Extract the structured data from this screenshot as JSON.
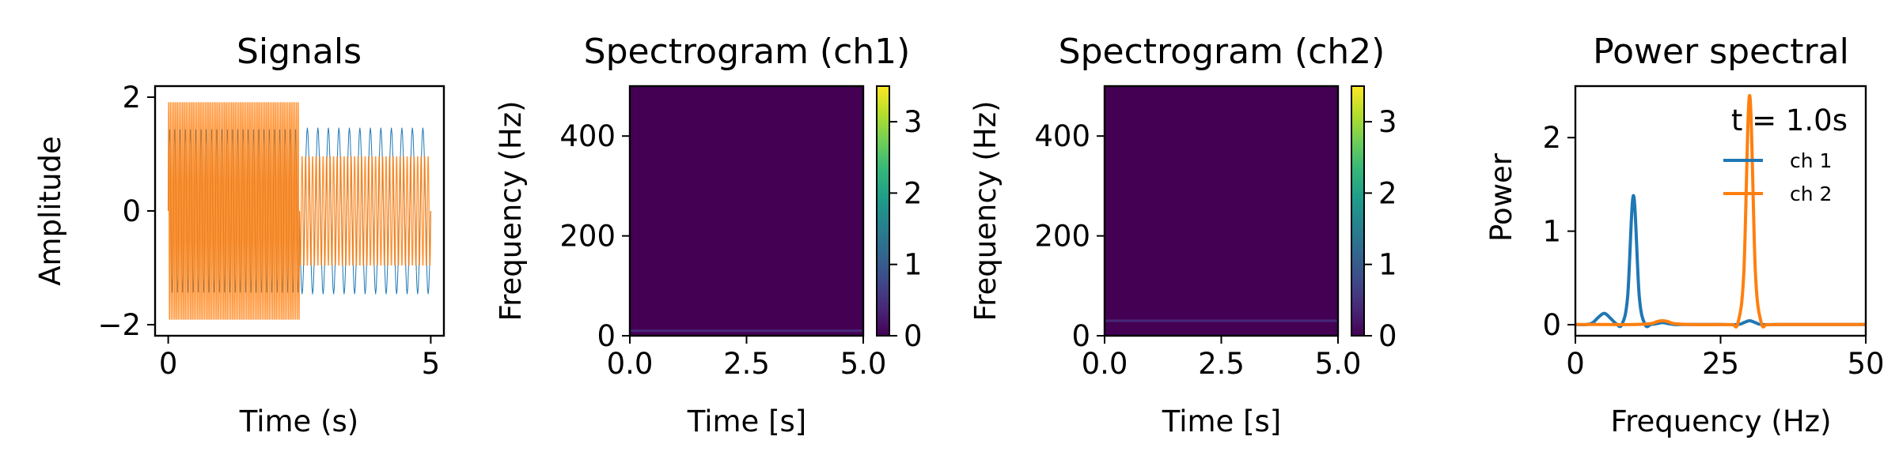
{
  "figure": {
    "colors": {
      "ch1": "#1f77b4",
      "ch2": "#ff7f0e",
      "viridis": [
        "#440154",
        "#482878",
        "#3e4a89",
        "#31688e",
        "#26828e",
        "#1f9e89",
        "#35b779",
        "#6ece58",
        "#b5de2b",
        "#fde725"
      ]
    }
  },
  "chart_data": [
    {
      "type": "line",
      "title": "Signals",
      "xlabel": "Time (s)",
      "ylabel": "Amplitude",
      "xlim": [
        -0.25,
        5.25
      ],
      "ylim": [
        -2.25,
        2.25
      ],
      "xticks": [
        0,
        5
      ],
      "yticks": [
        -2,
        0,
        2
      ],
      "xticklabels": [
        "0",
        "5"
      ],
      "yticklabels": [
        "−2",
        "0",
        "2"
      ],
      "series": [
        {
          "color": "#1f77b4",
          "segments": [
            {
              "t0": 0,
              "t1": 2.5,
              "amplitude": 1.5,
              "freq_hz": 10
            },
            {
              "t0": 2.5,
              "t1": 5,
              "amplitude": 1.5,
              "freq_hz": 5
            }
          ]
        },
        {
          "color": "#ff7f0e",
          "segments": [
            {
              "t0": 0,
              "t1": 2.5,
              "amplitude": 2,
              "freq_hz": 30
            },
            {
              "t0": 2.5,
              "t1": 5,
              "amplitude": 1,
              "freq_hz": 15
            }
          ]
        }
      ]
    },
    {
      "type": "heatmap",
      "title": "Spectrogram (ch1)",
      "xlabel": "Time [s]",
      "ylabel": "Frequency (Hz)",
      "xlim": [
        0,
        5
      ],
      "ylim": [
        0,
        500
      ],
      "xticks": [
        0,
        2.5,
        5
      ],
      "yticks": [
        0,
        200,
        400
      ],
      "xticklabels": [
        "0.0",
        "2.5",
        "5.0"
      ],
      "yticklabels": [
        "0",
        "200",
        "400"
      ],
      "colorbar": {
        "range": [
          0,
          3.5
        ],
        "ticks": [
          0,
          1,
          2,
          3
        ],
        "ticklabels": [
          "0",
          "1",
          "2",
          "3"
        ]
      },
      "background_value": 0,
      "bands": [
        {
          "freq_hz": 10,
          "t0": 0,
          "t1": 5,
          "value": 0.3
        }
      ]
    },
    {
      "type": "heatmap",
      "title": "Spectrogram (ch2)",
      "xlabel": "Time [s]",
      "ylabel": "Frequency (Hz)",
      "xlim": [
        0,
        5
      ],
      "ylim": [
        0,
        500
      ],
      "xticks": [
        0,
        2.5,
        5
      ],
      "yticks": [
        0,
        200,
        400
      ],
      "xticklabels": [
        "0.0",
        "2.5",
        "5.0"
      ],
      "yticklabels": [
        "0",
        "200",
        "400"
      ],
      "colorbar": {
        "range": [
          0,
          3.5
        ],
        "ticks": [
          0,
          1,
          2,
          3
        ],
        "ticklabels": [
          "0",
          "1",
          "2",
          "3"
        ]
      },
      "background_value": 0,
      "bands": [
        {
          "freq_hz": 30,
          "t0": 0,
          "t1": 5,
          "value": 0.4
        }
      ]
    },
    {
      "type": "line",
      "title": "Power spectral",
      "xlabel": "Frequency (Hz)",
      "ylabel": "Power",
      "xlim": [
        0,
        50
      ],
      "ylim": [
        -0.12,
        2.55
      ],
      "xticks": [
        0,
        25,
        50
      ],
      "yticks": [
        0,
        1,
        2
      ],
      "xticklabels": [
        "0",
        "25",
        "50"
      ],
      "yticklabels": [
        "0",
        "1",
        "2"
      ],
      "annotation": "t = 1.0s",
      "legend": {
        "location": "upper right",
        "entries": [
          "ch 1",
          "ch 2"
        ]
      },
      "series": [
        {
          "name": "ch 1",
          "color": "#1f77b4",
          "x": [
            0,
            2,
            3,
            4,
            5,
            6,
            7,
            8,
            9,
            10,
            11,
            12,
            13,
            14,
            15,
            16,
            17,
            18,
            20,
            25,
            28,
            29,
            30,
            31,
            32,
            35,
            40,
            45,
            50
          ],
          "y": [
            0,
            0,
            0.02,
            0.08,
            0.12,
            0.07,
            0.01,
            0,
            0.3,
            1.38,
            0.3,
            0,
            0,
            0.01,
            0.02,
            0.01,
            0,
            0,
            0,
            0,
            0,
            0.02,
            0.04,
            0.02,
            0,
            0,
            0,
            0,
            0
          ]
        },
        {
          "name": "ch 2",
          "color": "#ff7f0e",
          "x": [
            0,
            5,
            10,
            13,
            14,
            15,
            16,
            17,
            20,
            25,
            27,
            28,
            29,
            30,
            31,
            32,
            33,
            35,
            40,
            45,
            50
          ],
          "y": [
            0,
            0,
            0,
            0.01,
            0.03,
            0.04,
            0.03,
            0.01,
            0,
            0,
            0,
            0.02,
            0.55,
            2.45,
            0.55,
            0.02,
            0,
            0,
            0,
            0,
            0
          ]
        }
      ]
    }
  ]
}
